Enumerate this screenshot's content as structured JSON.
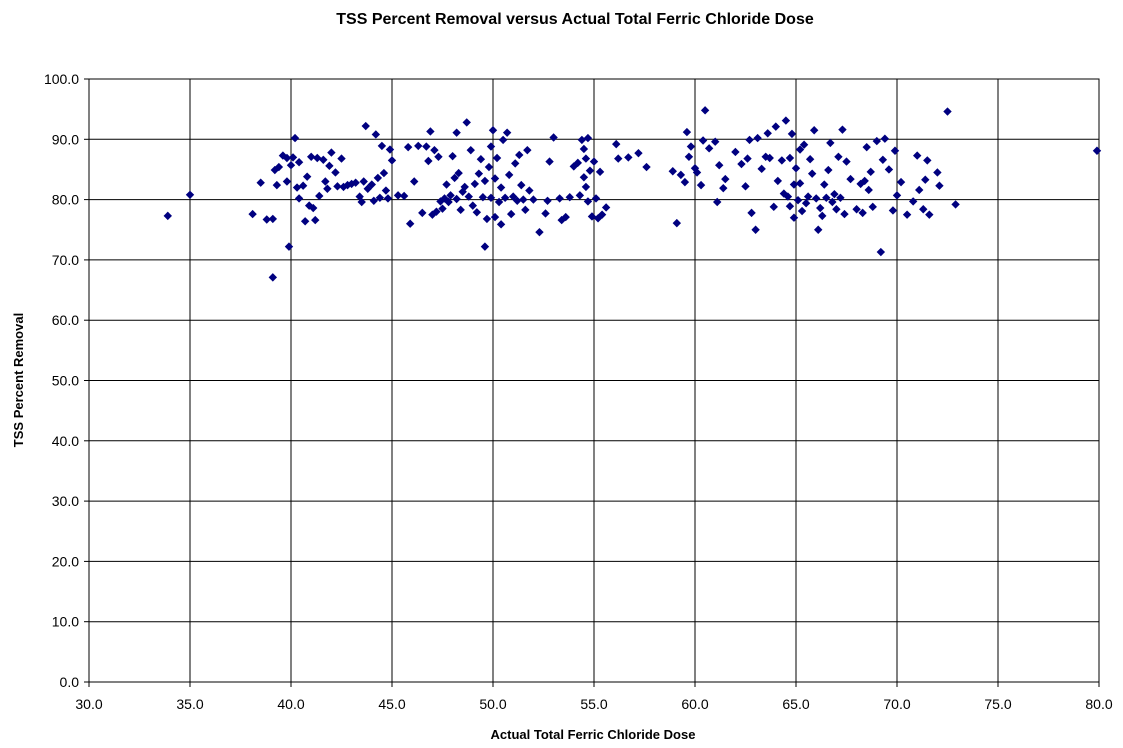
{
  "chart_data": {
    "type": "scatter",
    "title": "TSS Percent Removal versus Actual Total Ferric Chloride Dose",
    "xlabel": "Actual Total Ferric Chloride Dose",
    "ylabel": "TSS Percent Removal",
    "xlim": [
      30.0,
      80.0
    ],
    "ylim": [
      0.0,
      100.0
    ],
    "x_ticks": [
      "30.0",
      "35.0",
      "40.0",
      "45.0",
      "50.0",
      "55.0",
      "60.0",
      "65.0",
      "70.0",
      "75.0",
      "80.0"
    ],
    "y_ticks": [
      "0.0",
      "10.0",
      "20.0",
      "30.0",
      "40.0",
      "50.0",
      "60.0",
      "70.0",
      "80.0",
      "90.0",
      "100.0"
    ],
    "grid": true,
    "legend": "none",
    "marker": "diamond",
    "color": "#000080",
    "series": [
      {
        "points": [
          [
            33.9,
            77.3
          ],
          [
            35.0,
            80.8
          ],
          [
            38.1,
            77.6
          ],
          [
            38.5,
            82.8
          ],
          [
            38.8,
            76.7
          ],
          [
            39.1,
            67.1
          ],
          [
            39.1,
            76.8
          ],
          [
            39.2,
            84.9
          ],
          [
            39.3,
            82.4
          ],
          [
            39.4,
            85.4
          ],
          [
            39.6,
            87.3
          ],
          [
            39.8,
            86.9
          ],
          [
            39.8,
            83.0
          ],
          [
            39.9,
            72.2
          ],
          [
            40.0,
            85.7
          ],
          [
            40.1,
            87.0
          ],
          [
            40.2,
            90.2
          ],
          [
            40.3,
            82.0
          ],
          [
            40.4,
            86.2
          ],
          [
            40.4,
            80.2
          ],
          [
            40.6,
            82.3
          ],
          [
            40.7,
            76.4
          ],
          [
            40.8,
            83.8
          ],
          [
            40.9,
            79.0
          ],
          [
            41.0,
            87.1
          ],
          [
            41.1,
            78.6
          ],
          [
            41.2,
            76.6
          ],
          [
            41.3,
            86.9
          ],
          [
            41.4,
            80.6
          ],
          [
            41.6,
            86.6
          ],
          [
            41.7,
            83.0
          ],
          [
            41.8,
            81.8
          ],
          [
            41.9,
            85.6
          ],
          [
            42.0,
            87.8
          ],
          [
            42.2,
            84.5
          ],
          [
            42.3,
            82.2
          ],
          [
            42.5,
            86.8
          ],
          [
            42.6,
            82.1
          ],
          [
            42.8,
            82.4
          ],
          [
            43.0,
            82.6
          ],
          [
            43.2,
            82.8
          ],
          [
            43.4,
            80.5
          ],
          [
            43.5,
            79.6
          ],
          [
            43.6,
            83.0
          ],
          [
            43.7,
            92.2
          ],
          [
            43.8,
            81.8
          ],
          [
            44.0,
            82.5
          ],
          [
            44.1,
            79.8
          ],
          [
            44.2,
            90.8
          ],
          [
            44.3,
            83.6
          ],
          [
            44.4,
            80.3
          ],
          [
            44.5,
            88.9
          ],
          [
            44.6,
            84.4
          ],
          [
            44.7,
            81.5
          ],
          [
            44.8,
            80.2
          ],
          [
            44.9,
            88.3
          ],
          [
            45.0,
            86.5
          ],
          [
            45.3,
            80.7
          ],
          [
            45.6,
            80.6
          ],
          [
            45.8,
            88.7
          ],
          [
            45.9,
            76.0
          ],
          [
            46.1,
            83.0
          ],
          [
            46.3,
            88.9
          ],
          [
            46.5,
            77.8
          ],
          [
            46.7,
            88.8
          ],
          [
            46.8,
            86.4
          ],
          [
            46.9,
            91.3
          ],
          [
            47.0,
            77.5
          ],
          [
            47.1,
            88.2
          ],
          [
            47.2,
            78.0
          ],
          [
            47.3,
            87.1
          ],
          [
            47.4,
            79.7
          ],
          [
            47.5,
            78.5
          ],
          [
            47.6,
            80.2
          ],
          [
            47.7,
            82.5
          ],
          [
            47.8,
            79.6
          ],
          [
            47.9,
            80.7
          ],
          [
            48.0,
            87.2
          ],
          [
            48.1,
            83.6
          ],
          [
            48.2,
            91.1
          ],
          [
            48.2,
            80.1
          ],
          [
            48.3,
            84.4
          ],
          [
            48.4,
            78.3
          ],
          [
            48.5,
            81.3
          ],
          [
            48.6,
            82.1
          ],
          [
            48.7,
            92.8
          ],
          [
            48.8,
            80.5
          ],
          [
            48.9,
            88.2
          ],
          [
            49.0,
            79.0
          ],
          [
            49.1,
            82.6
          ],
          [
            49.2,
            77.9
          ],
          [
            49.3,
            84.3
          ],
          [
            49.4,
            86.7
          ],
          [
            49.5,
            80.4
          ],
          [
            49.6,
            72.2
          ],
          [
            49.6,
            83.1
          ],
          [
            49.7,
            76.8
          ],
          [
            49.8,
            85.4
          ],
          [
            49.9,
            88.8
          ],
          [
            49.9,
            80.3
          ],
          [
            50.0,
            91.5
          ],
          [
            50.1,
            77.1
          ],
          [
            50.1,
            83.5
          ],
          [
            50.2,
            86.9
          ],
          [
            50.3,
            79.6
          ],
          [
            50.4,
            75.9
          ],
          [
            50.4,
            82.0
          ],
          [
            50.5,
            89.9
          ],
          [
            50.6,
            80.3
          ],
          [
            50.7,
            91.1
          ],
          [
            50.8,
            84.1
          ],
          [
            50.9,
            77.6
          ],
          [
            51.0,
            80.5
          ],
          [
            51.1,
            86.0
          ],
          [
            51.2,
            79.8
          ],
          [
            51.3,
            87.4
          ],
          [
            51.4,
            82.4
          ],
          [
            51.5,
            80.0
          ],
          [
            51.6,
            78.3
          ],
          [
            51.7,
            88.2
          ],
          [
            51.8,
            81.5
          ],
          [
            52.0,
            80.0
          ],
          [
            52.3,
            74.6
          ],
          [
            52.6,
            77.7
          ],
          [
            52.7,
            79.8
          ],
          [
            52.8,
            86.3
          ],
          [
            53.0,
            90.3
          ],
          [
            53.3,
            80.2
          ],
          [
            53.4,
            76.6
          ],
          [
            53.6,
            77.1
          ],
          [
            53.8,
            80.4
          ],
          [
            54.0,
            85.5
          ],
          [
            54.2,
            86.1
          ],
          [
            54.3,
            80.7
          ],
          [
            54.4,
            89.9
          ],
          [
            54.5,
            83.7
          ],
          [
            54.5,
            88.4
          ],
          [
            54.6,
            86.8
          ],
          [
            54.6,
            82.1
          ],
          [
            54.7,
            90.2
          ],
          [
            54.7,
            79.7
          ],
          [
            54.8,
            84.8
          ],
          [
            54.9,
            77.2
          ],
          [
            55.0,
            86.3
          ],
          [
            55.1,
            80.2
          ],
          [
            55.2,
            76.9
          ],
          [
            55.3,
            84.6
          ],
          [
            55.4,
            77.5
          ],
          [
            55.6,
            78.7
          ],
          [
            56.1,
            89.2
          ],
          [
            56.2,
            86.8
          ],
          [
            56.7,
            87.0
          ],
          [
            57.2,
            87.7
          ],
          [
            57.6,
            85.4
          ],
          [
            58.9,
            84.7
          ],
          [
            59.1,
            76.1
          ],
          [
            59.3,
            84.1
          ],
          [
            59.5,
            82.9
          ],
          [
            59.6,
            91.2
          ],
          [
            59.7,
            87.1
          ],
          [
            59.8,
            88.8
          ],
          [
            60.0,
            85.2
          ],
          [
            60.1,
            84.5
          ],
          [
            60.3,
            82.4
          ],
          [
            60.4,
            89.8
          ],
          [
            60.5,
            94.8
          ],
          [
            60.7,
            88.5
          ],
          [
            61.0,
            89.6
          ],
          [
            61.1,
            79.6
          ],
          [
            61.2,
            85.7
          ],
          [
            61.4,
            81.9
          ],
          [
            61.5,
            83.4
          ],
          [
            62.0,
            87.9
          ],
          [
            62.3,
            85.9
          ],
          [
            62.5,
            82.2
          ],
          [
            62.6,
            86.8
          ],
          [
            62.7,
            89.9
          ],
          [
            62.8,
            77.8
          ],
          [
            63.0,
            75.0
          ],
          [
            63.1,
            90.2
          ],
          [
            63.3,
            85.1
          ],
          [
            63.5,
            87.1
          ],
          [
            63.6,
            91.0
          ],
          [
            63.7,
            86.9
          ],
          [
            63.9,
            78.8
          ],
          [
            64.0,
            92.1
          ],
          [
            64.1,
            83.1
          ],
          [
            64.3,
            86.5
          ],
          [
            64.4,
            81.0
          ],
          [
            64.5,
            93.1
          ],
          [
            64.6,
            80.5
          ],
          [
            64.7,
            78.9
          ],
          [
            64.7,
            86.9
          ],
          [
            64.8,
            90.9
          ],
          [
            64.9,
            77.0
          ],
          [
            64.9,
            82.5
          ],
          [
            65.0,
            85.2
          ],
          [
            65.1,
            79.9
          ],
          [
            65.2,
            88.3
          ],
          [
            65.2,
            82.7
          ],
          [
            65.3,
            78.1
          ],
          [
            65.4,
            89.1
          ],
          [
            65.5,
            79.4
          ],
          [
            65.6,
            80.5
          ],
          [
            65.7,
            86.7
          ],
          [
            65.8,
            84.3
          ],
          [
            65.9,
            91.5
          ],
          [
            66.0,
            80.2
          ],
          [
            66.1,
            75.0
          ],
          [
            66.2,
            78.6
          ],
          [
            66.3,
            77.3
          ],
          [
            66.4,
            82.5
          ],
          [
            66.5,
            80.3
          ],
          [
            66.6,
            84.9
          ],
          [
            66.7,
            89.4
          ],
          [
            66.8,
            79.6
          ],
          [
            66.9,
            80.9
          ],
          [
            67.0,
            78.4
          ],
          [
            67.1,
            87.1
          ],
          [
            67.2,
            80.3
          ],
          [
            67.3,
            91.6
          ],
          [
            67.4,
            77.6
          ],
          [
            67.5,
            86.3
          ],
          [
            67.7,
            83.4
          ],
          [
            68.0,
            78.4
          ],
          [
            68.2,
            82.6
          ],
          [
            68.3,
            77.8
          ],
          [
            68.4,
            83.1
          ],
          [
            68.5,
            88.7
          ],
          [
            68.6,
            81.6
          ],
          [
            68.7,
            84.6
          ],
          [
            68.8,
            78.8
          ],
          [
            69.0,
            89.7
          ],
          [
            69.2,
            71.3
          ],
          [
            69.3,
            86.6
          ],
          [
            69.4,
            90.1
          ],
          [
            69.6,
            85.0
          ],
          [
            69.8,
            78.2
          ],
          [
            69.9,
            88.1
          ],
          [
            70.0,
            80.7
          ],
          [
            70.2,
            82.9
          ],
          [
            70.5,
            77.5
          ],
          [
            70.8,
            79.7
          ],
          [
            71.0,
            87.3
          ],
          [
            71.1,
            81.6
          ],
          [
            71.3,
            78.4
          ],
          [
            71.4,
            83.3
          ],
          [
            71.5,
            86.5
          ],
          [
            71.6,
            77.5
          ],
          [
            72.0,
            84.5
          ],
          [
            72.1,
            82.3
          ],
          [
            72.5,
            94.6
          ],
          [
            72.9,
            79.2
          ],
          [
            79.9,
            88.1
          ]
        ]
      }
    ]
  }
}
